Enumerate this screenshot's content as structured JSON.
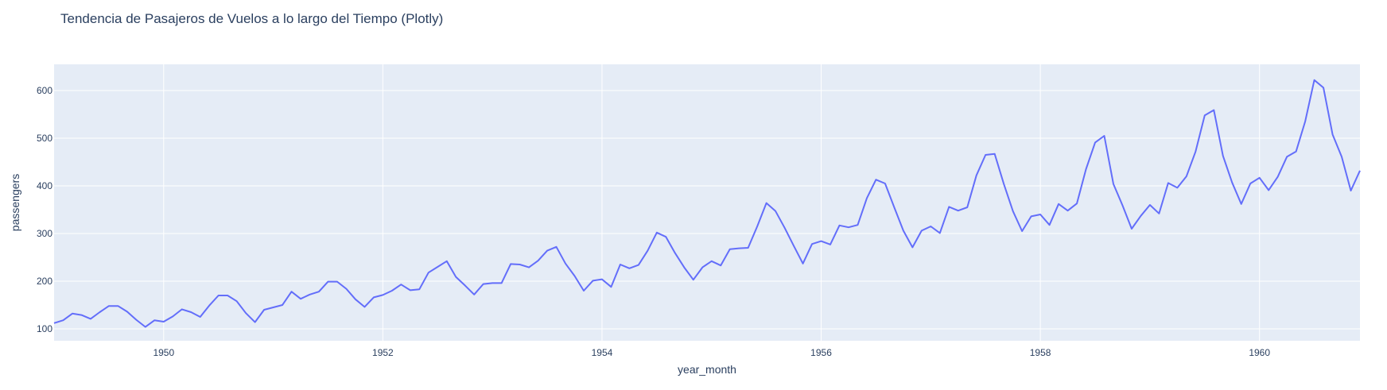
{
  "chart_data": {
    "type": "line",
    "title": "Tendencia de Pasajeros de Vuelos a lo largo del Tiempo (Plotly)",
    "xlabel": "year_month",
    "ylabel": "passengers",
    "x_start": "1949-01",
    "x_end": "1960-12",
    "xlim": [
      "1949-01",
      "1960-12"
    ],
    "ylim": [
      75,
      655
    ],
    "x_ticks": [
      "1950",
      "1952",
      "1954",
      "1956",
      "1958",
      "1960"
    ],
    "y_ticks": [
      100,
      200,
      300,
      400,
      500,
      600
    ],
    "grid": true,
    "background_color": "#e5ecf6",
    "grid_color": "#ffffff",
    "series": [
      {
        "color": "#636efa",
        "values": [
          112,
          118,
          132,
          129,
          121,
          135,
          148,
          148,
          136,
          119,
          104,
          118,
          115,
          126,
          141,
          135,
          125,
          149,
          170,
          170,
          158,
          133,
          114,
          140,
          145,
          150,
          178,
          163,
          172,
          178,
          199,
          199,
          184,
          162,
          146,
          166,
          171,
          180,
          193,
          181,
          183,
          218,
          230,
          242,
          209,
          191,
          172,
          194,
          196,
          196,
          236,
          235,
          229,
          243,
          264,
          272,
          237,
          211,
          180,
          201,
          204,
          188,
          235,
          227,
          234,
          264,
          302,
          293,
          259,
          229,
          203,
          229,
          242,
          233,
          267,
          269,
          270,
          315,
          364,
          347,
          312,
          274,
          237,
          278,
          284,
          277,
          317,
          313,
          318,
          374,
          413,
          405,
          355,
          306,
          271,
          306,
          315,
          301,
          356,
          348,
          355,
          422,
          465,
          467,
          404,
          347,
          305,
          336,
          340,
          318,
          362,
          348,
          363,
          435,
          491,
          505,
          404,
          359,
          310,
          337,
          360,
          342,
          406,
          396,
          420,
          472,
          548,
          559,
          463,
          407,
          362,
          405,
          417,
          391,
          419,
          461,
          472,
          535,
          622,
          606,
          508,
          461,
          390,
          432
        ]
      }
    ]
  }
}
